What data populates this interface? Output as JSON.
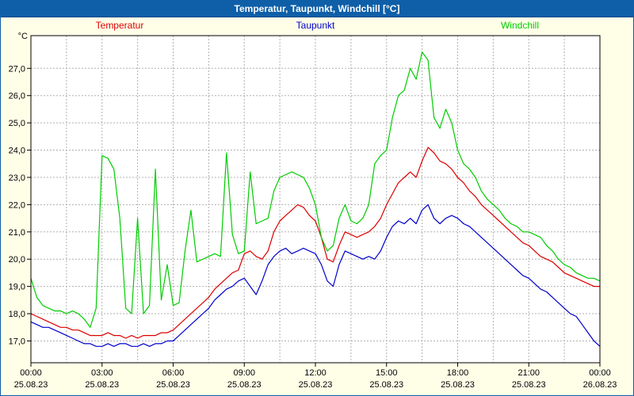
{
  "title_bar": {
    "title": "Temperatur, Taupunkt, Windchill [°C]"
  },
  "colors": {
    "title_bg": "#0e5fa8",
    "page_bg": "#ffffe8",
    "plot_bg": "#ffffff",
    "grid": "#b0b0b0",
    "axis": "#000000",
    "temperatur": "#dd0000",
    "taupunkt": "#0000cc",
    "windchill": "#00cc00"
  },
  "chart_data": {
    "type": "line",
    "title": "Temperatur, Taupunkt, Windchill [°C]",
    "ylabel_unit": "°C",
    "ylim": [
      16.2,
      28.2
    ],
    "x_range_hours": [
      0,
      24
    ],
    "x_step_hours": 0.25,
    "grid_minor_step_hours": 1.5,
    "y_ticks": [
      27,
      26,
      25,
      24,
      23,
      22,
      21,
      20,
      19,
      18,
      17
    ],
    "y_tick_labels": [
      "27,0",
      "26,0",
      "25,0",
      "24,0",
      "23,0",
      "22,0",
      "21,0",
      "20,0",
      "19,0",
      "18,0",
      "17,0"
    ],
    "x_ticks": {
      "hours": [
        0,
        3,
        6,
        9,
        12,
        15,
        18,
        21,
        24
      ],
      "times": [
        "00:00",
        "03:00",
        "06:00",
        "09:00",
        "12:00",
        "15:00",
        "18:00",
        "21:00",
        "00:00"
      ],
      "dates": [
        "25.08.23",
        "25.08.23",
        "25.08.23",
        "25.08.23",
        "25.08.23",
        "25.08.23",
        "25.08.23",
        "25.08.23",
        "26.08.23"
      ]
    },
    "legend_position": "top",
    "grid": "dashed",
    "series": [
      {
        "name": "Temperatur",
        "color": "#dd0000",
        "values": [
          18.0,
          17.9,
          17.8,
          17.7,
          17.6,
          17.5,
          17.5,
          17.4,
          17.4,
          17.3,
          17.2,
          17.2,
          17.2,
          17.3,
          17.2,
          17.2,
          17.1,
          17.2,
          17.1,
          17.2,
          17.2,
          17.2,
          17.3,
          17.3,
          17.4,
          17.6,
          17.8,
          18.0,
          18.2,
          18.4,
          18.6,
          18.9,
          19.1,
          19.3,
          19.5,
          19.6,
          20.2,
          20.3,
          20.1,
          20.0,
          20.3,
          21.0,
          21.4,
          21.6,
          21.8,
          22.0,
          21.9,
          21.6,
          21.4,
          20.8,
          20.0,
          19.9,
          20.5,
          21.0,
          20.9,
          20.8,
          20.9,
          21.0,
          21.2,
          21.5,
          22.0,
          22.4,
          22.8,
          23.0,
          23.2,
          23.0,
          23.6,
          24.1,
          23.9,
          23.6,
          23.5,
          23.3,
          23.0,
          22.8,
          22.5,
          22.3,
          22.0,
          21.8,
          21.6,
          21.4,
          21.2,
          21.0,
          20.8,
          20.6,
          20.5,
          20.3,
          20.1,
          20.0,
          19.9,
          19.7,
          19.5,
          19.4,
          19.3,
          19.2,
          19.1,
          19.0,
          19.0
        ]
      },
      {
        "name": "Taupunkt",
        "color": "#0000cc",
        "values": [
          17.7,
          17.6,
          17.5,
          17.5,
          17.4,
          17.3,
          17.2,
          17.1,
          17.0,
          16.9,
          16.9,
          16.8,
          16.8,
          16.9,
          16.8,
          16.9,
          16.9,
          16.8,
          16.8,
          16.9,
          16.8,
          16.9,
          16.9,
          17.0,
          17.0,
          17.2,
          17.4,
          17.6,
          17.8,
          18.0,
          18.2,
          18.5,
          18.7,
          18.9,
          19.0,
          19.2,
          19.3,
          19.0,
          18.7,
          19.2,
          19.8,
          20.1,
          20.3,
          20.4,
          20.2,
          20.3,
          20.4,
          20.3,
          20.2,
          19.8,
          19.2,
          19.0,
          19.8,
          20.3,
          20.2,
          20.1,
          20.0,
          20.1,
          20.0,
          20.3,
          20.8,
          21.2,
          21.4,
          21.3,
          21.5,
          21.3,
          21.8,
          22.0,
          21.5,
          21.3,
          21.5,
          21.6,
          21.5,
          21.3,
          21.2,
          21.0,
          20.8,
          20.6,
          20.4,
          20.2,
          20.0,
          19.8,
          19.6,
          19.4,
          19.3,
          19.1,
          18.9,
          18.8,
          18.6,
          18.4,
          18.2,
          18.0,
          17.9,
          17.6,
          17.3,
          17.0,
          16.8
        ]
      },
      {
        "name": "Windchill",
        "color": "#00cc00",
        "values": [
          19.3,
          18.6,
          18.3,
          18.2,
          18.1,
          18.1,
          18.0,
          18.1,
          18.0,
          17.8,
          17.5,
          18.2,
          23.8,
          23.7,
          23.3,
          21.5,
          18.2,
          18.0,
          21.5,
          18.0,
          18.3,
          23.3,
          18.5,
          19.8,
          18.3,
          18.4,
          20.3,
          21.8,
          19.9,
          20.0,
          20.1,
          20.2,
          20.1,
          23.9,
          20.9,
          20.2,
          20.3,
          23.2,
          21.3,
          21.4,
          21.5,
          22.5,
          23.0,
          23.1,
          23.2,
          23.1,
          23.0,
          22.6,
          22.0,
          20.8,
          20.3,
          20.5,
          21.5,
          22.0,
          21.4,
          21.3,
          21.5,
          22.0,
          23.5,
          23.8,
          24.0,
          25.2,
          26.0,
          26.2,
          27.0,
          26.6,
          27.6,
          27.3,
          25.2,
          24.8,
          25.5,
          25.0,
          24.0,
          23.5,
          23.3,
          23.0,
          22.5,
          22.2,
          22.0,
          21.8,
          21.5,
          21.3,
          21.2,
          21.0,
          21.0,
          20.9,
          20.8,
          20.5,
          20.3,
          20.0,
          19.8,
          19.7,
          19.5,
          19.4,
          19.3,
          19.3,
          19.2
        ]
      }
    ]
  }
}
